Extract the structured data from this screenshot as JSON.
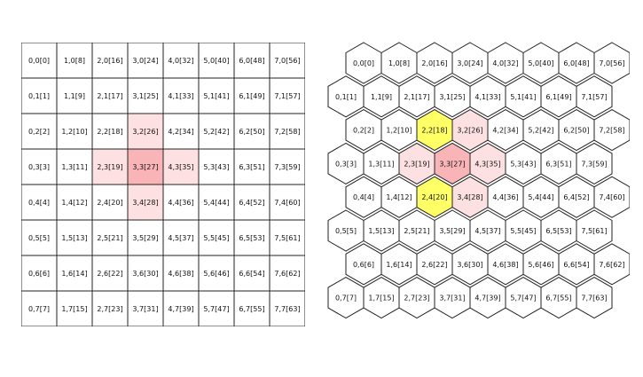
{
  "grid": {
    "cols": 8,
    "rows": 8,
    "cell_label_format": "col,row[col*8+row]"
  },
  "square_grid": {
    "highlights": [
      {
        "col": 3,
        "row": 3,
        "color": "#f9b4b8"
      },
      {
        "col": 3,
        "row": 2,
        "color": "#fde0e2"
      },
      {
        "col": 3,
        "row": 4,
        "color": "#fde0e2"
      },
      {
        "col": 2,
        "row": 3,
        "color": "#fde0e2"
      },
      {
        "col": 4,
        "row": 3,
        "color": "#fde0e2"
      }
    ]
  },
  "hex_grid": {
    "highlights": [
      {
        "col": 3,
        "row": 3,
        "color": "#f9b4b8"
      },
      {
        "col": 3,
        "row": 2,
        "color": "#fde0e2"
      },
      {
        "col": 3,
        "row": 4,
        "color": "#fde0e2"
      },
      {
        "col": 2,
        "row": 3,
        "color": "#fde0e2"
      },
      {
        "col": 4,
        "row": 3,
        "color": "#fde0e2"
      },
      {
        "col": 2,
        "row": 2,
        "color": "#ffff66"
      },
      {
        "col": 2,
        "row": 4,
        "color": "#ffff66"
      }
    ]
  },
  "colors": {
    "stroke": "#222222",
    "text": "#111111",
    "background": "#ffffff"
  }
}
